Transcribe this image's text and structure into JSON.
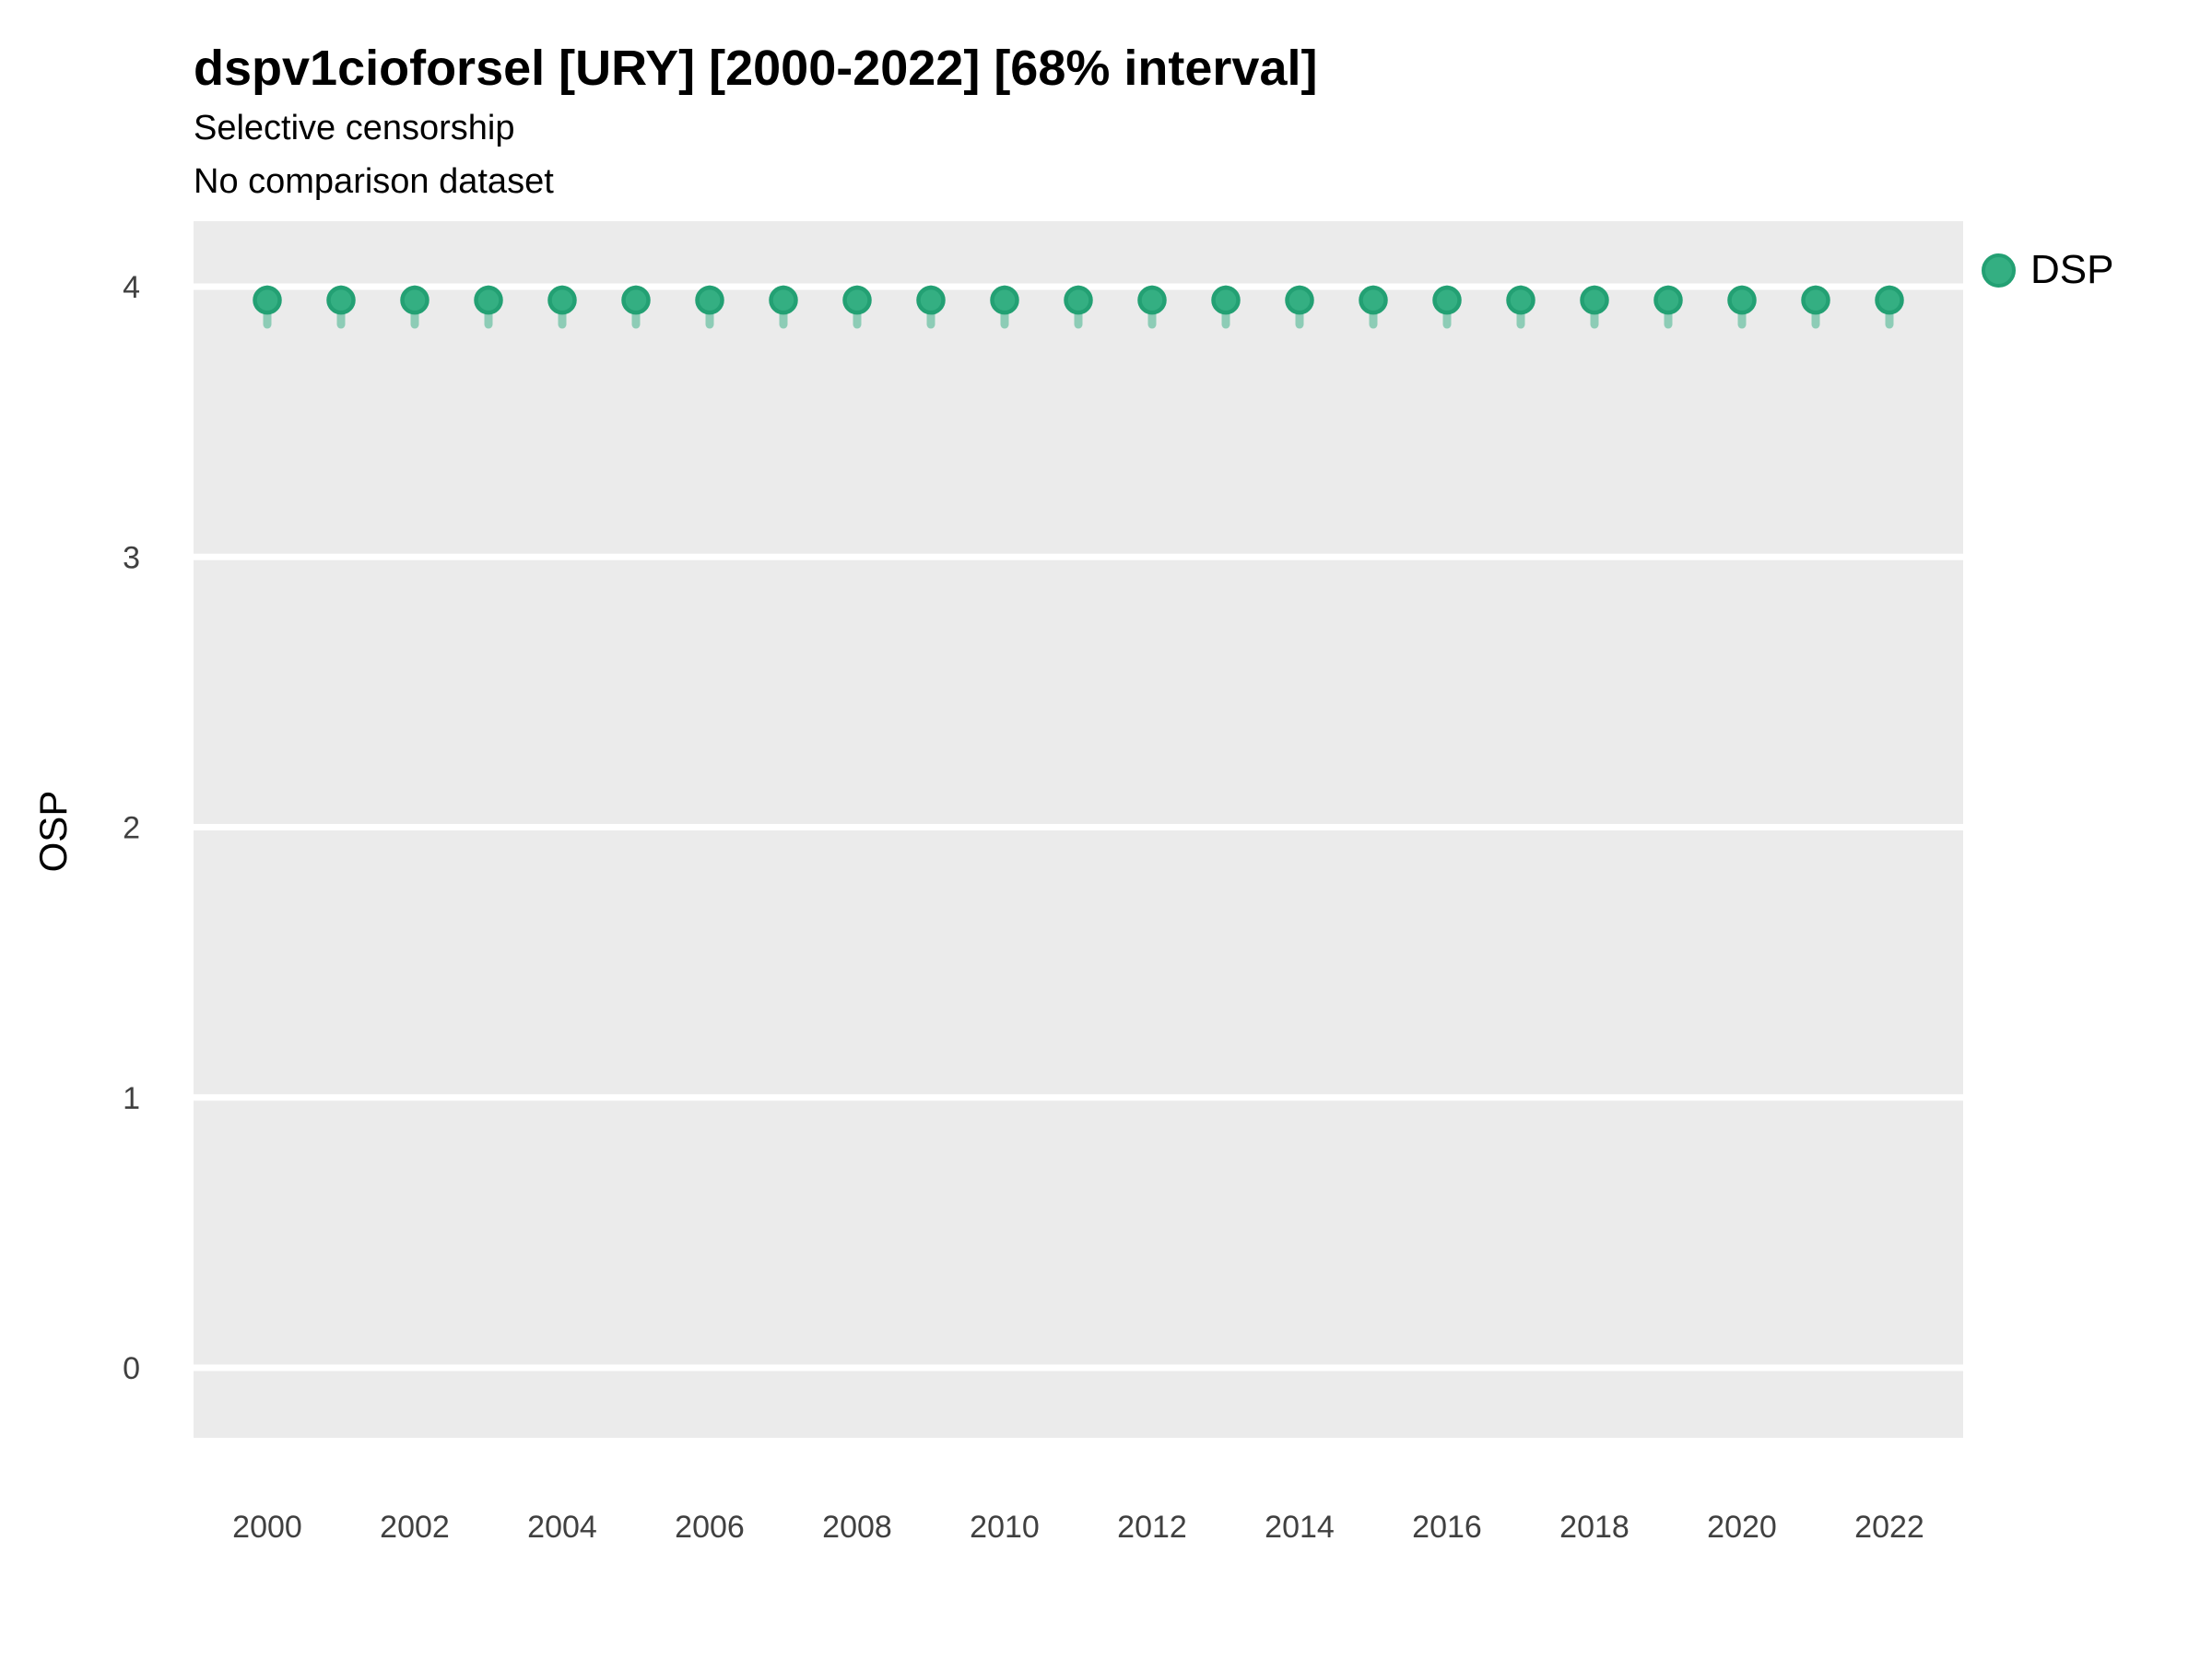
{
  "chart_data": {
    "type": "scatter",
    "title": "dspv1cioforsel [URY] [2000-2022] [68% interval]",
    "subtitle": [
      "Selective censorship",
      "No comparison dataset"
    ],
    "xlabel": "",
    "ylabel": "OSP",
    "xlim": [
      1999,
      2023
    ],
    "ylim": [
      -0.26,
      4.25
    ],
    "xticks": [
      2000,
      2002,
      2004,
      2006,
      2008,
      2010,
      2012,
      2014,
      2016,
      2018,
      2020,
      2022
    ],
    "yticks": [
      0,
      1,
      2,
      3,
      4
    ],
    "grid": "major-horizontal-only",
    "legend_position": "right-top",
    "interval_level": "68%",
    "series": [
      {
        "name": "DSP",
        "x": [
          2000,
          2001,
          2002,
          2003,
          2004,
          2005,
          2006,
          2007,
          2008,
          2009,
          2010,
          2011,
          2012,
          2013,
          2014,
          2015,
          2016,
          2017,
          2018,
          2019,
          2020,
          2021,
          2022
        ],
        "y": [
          3.95,
          3.95,
          3.95,
          3.95,
          3.95,
          3.95,
          3.95,
          3.95,
          3.95,
          3.95,
          3.95,
          3.95,
          3.95,
          3.95,
          3.95,
          3.95,
          3.95,
          3.95,
          3.95,
          3.95,
          3.95,
          3.95,
          3.95
        ],
        "interval_low": [
          3.86,
          3.86,
          3.86,
          3.86,
          3.86,
          3.86,
          3.86,
          3.86,
          3.86,
          3.86,
          3.86,
          3.86,
          3.86,
          3.86,
          3.86,
          3.86,
          3.86,
          3.86,
          3.86,
          3.86,
          3.86,
          3.86,
          3.86
        ],
        "interval_high": [
          3.99,
          3.99,
          3.99,
          3.99,
          3.99,
          3.99,
          3.99,
          3.99,
          3.99,
          3.99,
          3.99,
          3.99,
          3.99,
          3.99,
          3.99,
          3.99,
          3.99,
          3.99,
          3.99,
          3.99,
          3.99,
          3.99,
          3.99
        ]
      }
    ],
    "colors": {
      "point_fill": "#34af82",
      "point_stroke": "#23a073",
      "interval": "#2fae81",
      "panel_bg": "#ebebeb",
      "gridline": "#ffffff",
      "tick_label": "#404040",
      "text": "#000000"
    }
  }
}
